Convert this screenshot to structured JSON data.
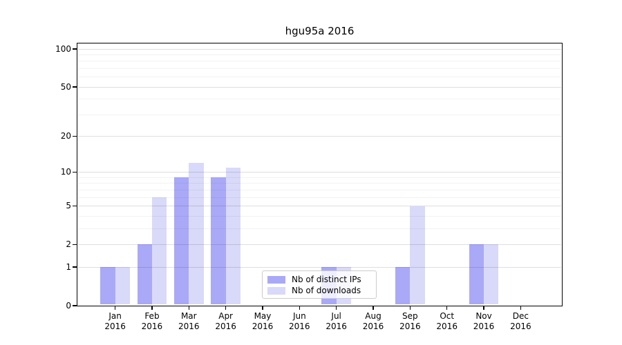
{
  "chart_data": {
    "type": "bar",
    "title": "hgu95a 2016",
    "categories": [
      "Jan",
      "Feb",
      "Mar",
      "Apr",
      "May",
      "Jun",
      "Jul",
      "Aug",
      "Sep",
      "Oct",
      "Nov",
      "Dec"
    ],
    "category_year": "2016",
    "series": [
      {
        "name": "Nb of distinct IPs",
        "color": "#a9a9f7",
        "values": [
          1,
          2,
          9,
          9,
          0,
          0,
          1,
          0,
          1,
          0,
          2,
          0
        ]
      },
      {
        "name": "Nb of downloads",
        "color": "#d9d9f9",
        "values": [
          1,
          6,
          12,
          11,
          0,
          0,
          1,
          0,
          5,
          0,
          2,
          0
        ]
      }
    ],
    "y_axis": {
      "scale": "log1p",
      "ticks": [
        0,
        1,
        2,
        5,
        10,
        20,
        50,
        100
      ],
      "minor_gridlines": [
        3,
        4,
        6,
        7,
        8,
        9,
        30,
        40,
        60,
        70,
        80,
        90
      ],
      "max_value": 110
    },
    "xlabel": "",
    "ylabel": "",
    "grid": "on",
    "legend_position": "lower center"
  }
}
